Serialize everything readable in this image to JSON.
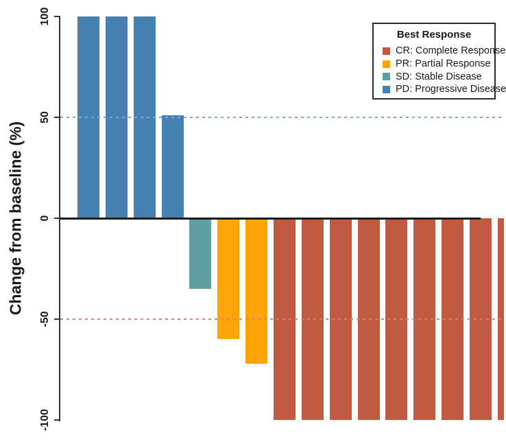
{
  "chart_data": {
    "type": "bar",
    "title": "",
    "xlabel": "",
    "ylabel": "Change from baseline (%)",
    "ylim": [
      -100,
      100
    ],
    "y_ticks": [
      100,
      50,
      0,
      -50,
      -100
    ],
    "y_tick_labels": [
      "100",
      "50",
      "0",
      "-50",
      "-100"
    ],
    "grid": false,
    "zero_baseline": 0,
    "reference_lines": [
      {
        "y": 50,
        "style": "dashed",
        "color": "#79A7D9"
      },
      {
        "y": -50,
        "style": "dashed",
        "color": "#D0857C"
      }
    ],
    "bars": [
      {
        "category": "PD",
        "value": 100
      },
      {
        "category": "PD",
        "value": 100
      },
      {
        "category": "PD",
        "value": 100
      },
      {
        "category": "PD",
        "value": 51
      },
      {
        "category": "SD",
        "value": -35
      },
      {
        "category": "PR",
        "value": -60
      },
      {
        "category": "PR",
        "value": -72
      },
      {
        "category": "CR",
        "value": -100
      },
      {
        "category": "CR",
        "value": -100
      },
      {
        "category": "CR",
        "value": -100
      },
      {
        "category": "CR",
        "value": -100
      },
      {
        "category": "CR",
        "value": -100
      },
      {
        "category": "CR",
        "value": -100
      },
      {
        "category": "CR",
        "value": -100
      },
      {
        "category": "CR",
        "value": -100
      },
      {
        "category": "CR",
        "value": -100
      }
    ],
    "category_colors": {
      "CR": "#C05B42",
      "PR": "#FFA406",
      "SD": "#609EA0",
      "PD": "#4781B4"
    },
    "legend_position": "top-right"
  },
  "legend": {
    "title": "Best Response",
    "items": [
      {
        "code": "CR",
        "label": "CR: Complete Response",
        "color": "#C05B42"
      },
      {
        "code": "PR",
        "label": "PR: Partial Response",
        "color": "#FFA406"
      },
      {
        "code": "SD",
        "label": "SD: Stable Disease",
        "color": "#609EA0"
      },
      {
        "code": "PD",
        "label": "PD: Progressive Disease",
        "color": "#4781B4"
      }
    ]
  },
  "colors": {
    "background": "#ffffff",
    "axis": "#333333",
    "zero_line": "#1a1a1a"
  }
}
